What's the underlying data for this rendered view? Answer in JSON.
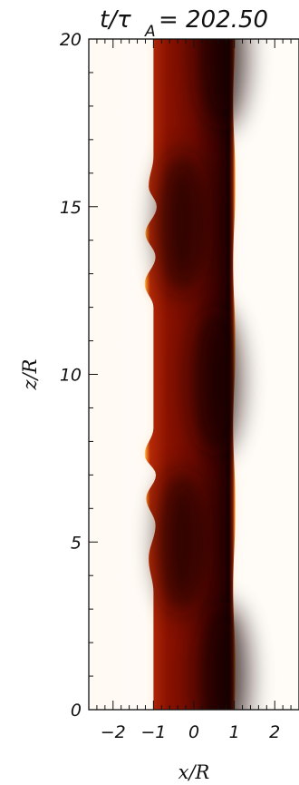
{
  "chart_data": {
    "type": "heatmap",
    "title_left": "t/τ",
    "title_subscript": "A",
    "title_right": "= 202.50",
    "xlabel": "x/R",
    "ylabel": "z/R",
    "xlim": [
      -2.6,
      2.6
    ],
    "ylim": [
      0,
      20
    ],
    "x_ticks": [
      -2,
      -1,
      0,
      1,
      2
    ],
    "y_ticks": [
      0,
      5,
      10,
      15,
      20
    ],
    "x_tick_labels": [
      "−2",
      "−1",
      "0",
      "1",
      "2"
    ],
    "y_tick_labels": [
      "0",
      "5",
      "10",
      "15",
      "20"
    ],
    "colormap": [
      "#fffaf6",
      "#ffd79a",
      "#f08a1f",
      "#b5280a",
      "#6a0800",
      "#1a0000"
    ],
    "tube": {
      "left_edge_x": -1.0,
      "right_edge_x": 1.0,
      "left_boundary_perturbation": [
        {
          "z": 0,
          "dx": 0.0
        },
        {
          "z": 3.5,
          "dx": 0.0
        },
        {
          "z": 4.5,
          "dx": -0.12
        },
        {
          "z": 5.5,
          "dx": 0.05
        },
        {
          "z": 6.3,
          "dx": -0.18
        },
        {
          "z": 7.0,
          "dx": 0.06
        },
        {
          "z": 7.6,
          "dx": -0.22
        },
        {
          "z": 8.4,
          "dx": 0.0
        },
        {
          "z": 12.0,
          "dx": 0.0
        },
        {
          "z": 12.7,
          "dx": -0.22
        },
        {
          "z": 13.5,
          "dx": 0.05
        },
        {
          "z": 14.2,
          "dx": -0.2
        },
        {
          "z": 15.0,
          "dx": 0.08
        },
        {
          "z": 15.6,
          "dx": -0.12
        },
        {
          "z": 16.5,
          "dx": 0.0
        },
        {
          "z": 20,
          "dx": 0.0
        }
      ],
      "dark_core_centers": [
        {
          "z": 1.0,
          "x": 0.75
        },
        {
          "z": 5.0,
          "x": -0.3
        },
        {
          "z": 9.8,
          "x": 0.55
        },
        {
          "z": 14.5,
          "x": -0.3
        },
        {
          "z": 19.5,
          "x": 0.7
        }
      ]
    },
    "colorbar": false,
    "grid": false
  }
}
